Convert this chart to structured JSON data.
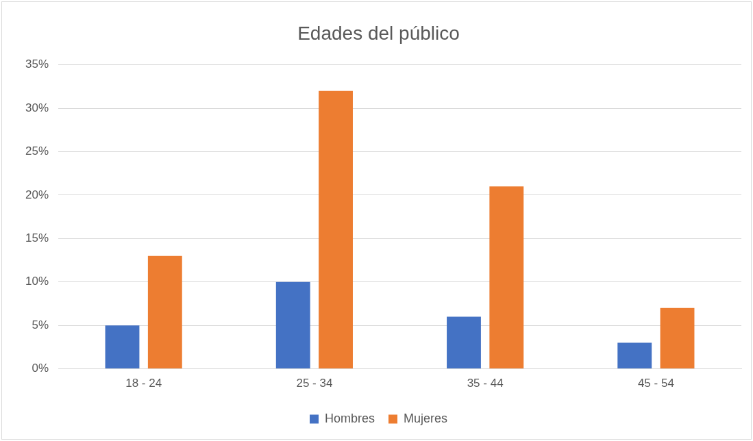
{
  "chart_data": {
    "type": "bar",
    "title": "Edades del público",
    "categories": [
      "18 - 24",
      "25 - 34",
      "35 - 44",
      "45 - 54"
    ],
    "series": [
      {
        "name": "Hombres",
        "color": "#4472c4",
        "values": [
          5,
          10,
          6,
          3
        ]
      },
      {
        "name": "Mujeres",
        "color": "#ed7d31",
        "values": [
          13,
          32,
          21,
          7
        ]
      }
    ],
    "ylim": [
      0,
      35
    ],
    "yticks": [
      {
        "value": 0,
        "label": "0%"
      },
      {
        "value": 5,
        "label": "5%"
      },
      {
        "value": 10,
        "label": "10%"
      },
      {
        "value": 15,
        "label": "15%"
      },
      {
        "value": 20,
        "label": "20%"
      },
      {
        "value": 25,
        "label": "25%"
      },
      {
        "value": 30,
        "label": "30%"
      },
      {
        "value": 35,
        "label": "35%"
      }
    ],
    "grid": "y",
    "legend": "bottom"
  }
}
